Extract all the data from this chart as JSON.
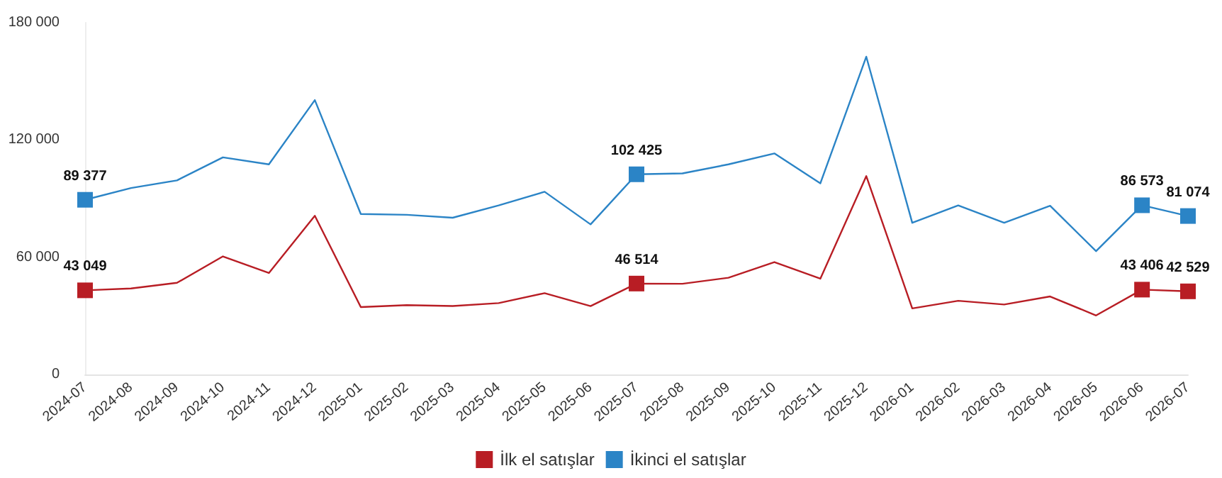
{
  "chart_data": {
    "type": "line",
    "categories": [
      "2024-07",
      "2024-08",
      "2024-09",
      "2024-10",
      "2024-11",
      "2024-12",
      "2025-01",
      "2025-02",
      "2025-03",
      "2025-04",
      "2025-05",
      "2025-06",
      "2025-07",
      "2025-08",
      "2025-09",
      "2025-10",
      "2025-11",
      "2025-12",
      "2026-01",
      "2026-02",
      "2026-03",
      "2026-04",
      "2026-05",
      "2026-06",
      "2026-07"
    ],
    "series": [
      {
        "name": "İlk el satışlar",
        "color": "#b81d24",
        "values": [
          43049,
          44000,
          46900,
          60400,
          51900,
          81200,
          34500,
          35500,
          35000,
          36500,
          41600,
          35000,
          46514,
          46400,
          49500,
          57500,
          49000,
          101500,
          33800,
          37700,
          35800,
          39900,
          30200,
          43406,
          42529
        ],
        "value_labels": [
          "43 049",
          null,
          null,
          null,
          null,
          null,
          null,
          null,
          null,
          null,
          null,
          null,
          "46 514",
          null,
          null,
          null,
          null,
          null,
          null,
          null,
          null,
          null,
          null,
          "43 406",
          "42 529"
        ]
      },
      {
        "name": "İkinci el satışlar",
        "color": "#2b84c6",
        "values": [
          89377,
          95400,
          99300,
          111100,
          107500,
          140400,
          82100,
          81700,
          80200,
          86500,
          93500,
          76800,
          102425,
          102900,
          107500,
          113100,
          97800,
          162600,
          77600,
          86500,
          77600,
          86300,
          63100,
          86573,
          81074
        ],
        "value_labels": [
          "89 377",
          null,
          null,
          null,
          null,
          null,
          null,
          null,
          null,
          null,
          null,
          null,
          "102 425",
          null,
          null,
          null,
          null,
          null,
          null,
          null,
          null,
          null,
          null,
          "86 573",
          "81 074"
        ]
      }
    ],
    "ylim": [
      0,
      180000
    ],
    "yticks": [
      {
        "value": 0,
        "label": "0"
      },
      {
        "value": 60000,
        "label": "60 000"
      },
      {
        "value": 120000,
        "label": "120 000"
      },
      {
        "value": 180000,
        "label": "180 000"
      }
    ],
    "grid": false,
    "legend": "bottom",
    "line_style": "solid"
  }
}
